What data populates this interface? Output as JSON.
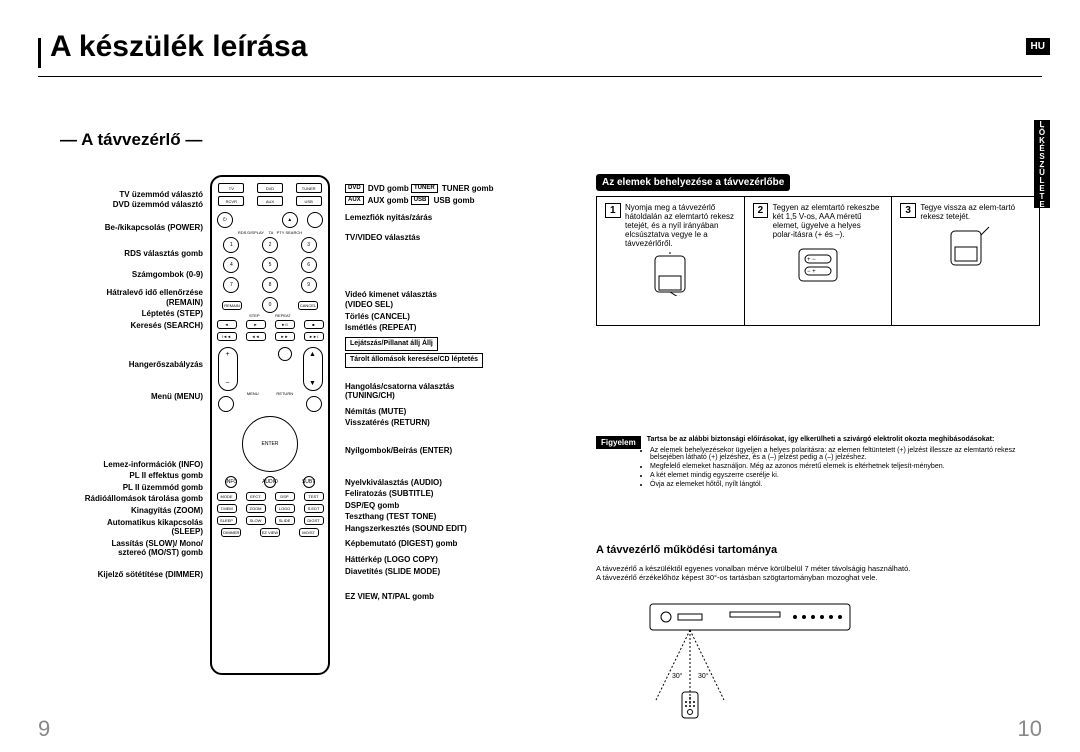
{
  "title": "A készülék leírása",
  "lang_badge": "HU",
  "side_tab": "ELŐKÉSZÜLETEK",
  "subtitle": "— A távvezérlő —",
  "page_left": "9",
  "page_right": "10",
  "remote_top_buttons": [
    "TV",
    "DVD",
    "TUNER",
    "RECEIVER",
    "AUX",
    "USB"
  ],
  "labels_left": [
    {
      "text": "TV üzemmód választó\nDVD üzemmód választó",
      "gap": 0
    },
    {
      "text": "Be-/kikapcsolás (POWER)",
      "gap": 14
    },
    {
      "text": "RDS választás gomb",
      "gap": 16
    },
    {
      "text": "Számgombok (0-9)",
      "gap": 12
    },
    {
      "text": "Hátralevő idő ellenőrzése\n(REMAIN)",
      "gap": 8
    },
    {
      "text": "Léptetés (STEP)",
      "gap": 2
    },
    {
      "text": "Keresés (SEARCH)",
      "gap": 2
    },
    {
      "text": "Hangerőszabályzás",
      "gap": 30
    },
    {
      "text": "Menü  (MENU)",
      "gap": 22
    },
    {
      "text": "Lemez-információk (INFO)",
      "gap": 58
    },
    {
      "text": "␣ PL II effektus gomb",
      "gap": 2
    },
    {
      "text": "␣ PL II üzemmód gomb",
      "gap": 2
    },
    {
      "text": "Rádióállomások tárolása gomb",
      "gap": 2
    },
    {
      "text": "Kinagyítás (ZOOM)",
      "gap": 2
    },
    {
      "text": "Automatikus kikapcsolás\n(SLEEP)",
      "gap": 2
    },
    {
      "text": "Lassítás (SLOW)/ Mono/\nsztereó (MO/ST) gomb",
      "gap": 2
    },
    {
      "text": "Kijelző sötétítése (DIMMER)",
      "gap": 12
    }
  ],
  "labels_right": [
    {
      "text": "␀DVD␀ DVD gomb   ␀TUNER␀ TUNER gomb",
      "icons": true,
      "gap": 0
    },
    {
      "text": "␀AUX␀ AUX gomb   ␀USB␀ USB gomb",
      "icons": true,
      "gap": 2
    },
    {
      "text": "Lemezfiók nyitás/zárás",
      "gap": 8
    },
    {
      "text": "TV/VIDEO választás",
      "gap": 10
    },
    {
      "text": "Videó kimenet választás\n(VIDEO SEL)",
      "gap": 48
    },
    {
      "text": "Törlés (CANCEL)",
      "gap": 2
    },
    {
      "text": "Ismétlés (REPEAT)",
      "gap": 2
    },
    {
      "text": "␞ Lejátszás/Pillanat állj   ␟ Állj",
      "boxed": true,
      "gap": 4
    },
    {
      "text": "␞ Tárolt állomások keresése/CD léptetés",
      "boxed": true,
      "gap": 2
    },
    {
      "text": "Hangolás/csatorna választás\n(TUNING/CH)",
      "gap": 14
    },
    {
      "text": "Némítás (MUTE)",
      "gap": 6
    },
    {
      "text": "Visszatérés  (RETURN)",
      "gap": 2
    },
    {
      "text": "Nyílgombok/Beírás (ENTER)",
      "gap": 18
    },
    {
      "text": "Nyelvkiválasztás (AUDIO)",
      "gap": 22
    },
    {
      "text": "Feliratozás (SUBTITLE)",
      "gap": 2
    },
    {
      "text": "DSP/EQ gomb",
      "gap": 2
    },
    {
      "text": "Teszthang (TEST TONE)",
      "gap": 2
    },
    {
      "text": "Hangszerkesztés (SOUND EDIT)",
      "gap": 2
    },
    {
      "text": "Képbemutató (DIGEST) gomb",
      "gap": 6
    },
    {
      "text": "Háttérkép (LOGO COPY)",
      "gap": 6
    },
    {
      "text": "Diavetítés (SLIDE MODE)",
      "gap": 2
    },
    {
      "text": "EZ VIEW, NT/PAL gomb",
      "gap": 16
    }
  ],
  "battery": {
    "heading": "Az elemek behelyezése a távvezérlőbe",
    "steps": [
      {
        "num": "1",
        "text": "Nyomja meg a távvezérlő hátoldalán az elemtartó rekesz tetejét, és a nyíl irányában elcsúsztatva vegye le a távvezérlőről."
      },
      {
        "num": "2",
        "text": "Tegyen az elemtartó rekeszbe két 1,5 V-os, AAA méretű elemet, ügyelve a helyes polar-itásra (+ és –)."
      },
      {
        "num": "3",
        "text": "Tegye vissza az elem-tartó rekesz tetejét."
      }
    ]
  },
  "caution": {
    "badge": "Figyelem",
    "lead": "Tartsa be az alábbi biztonsági előírásokat, így elkerülheti a szivárgó elektrolit okozta meghibásodásokat:",
    "bullets": [
      "Az elemek behelyezésekor ügyeljen a helyes polaritásra: az elemen feltüntetett (+) jelzést illessze az elemtartó rekesz belsejében látható (+) jelzéshez, és a (–) jelzést pedig a (–) jelzéshez.",
      "Megfelelő elemeket használjon. Még az azonos méretű elemek is eltérhetnek teljesít-ményben.",
      "A két elemet mindig egyszerre cserélje ki.",
      "Óvja az elemeket hőtől, nyílt lángtól."
    ]
  },
  "range": {
    "heading": "A távvezérlő működési tartománya",
    "line1": "A távvezérlő a készüléktől egyenes vonalban mérve körülbelül 7 méter távolságig használható.",
    "line2": "A távvezérlő érzékelőhöz képest 30°-os tartásban szögtartományban mozoghat vele.",
    "angle_left": "30°",
    "angle_right": "30°"
  }
}
